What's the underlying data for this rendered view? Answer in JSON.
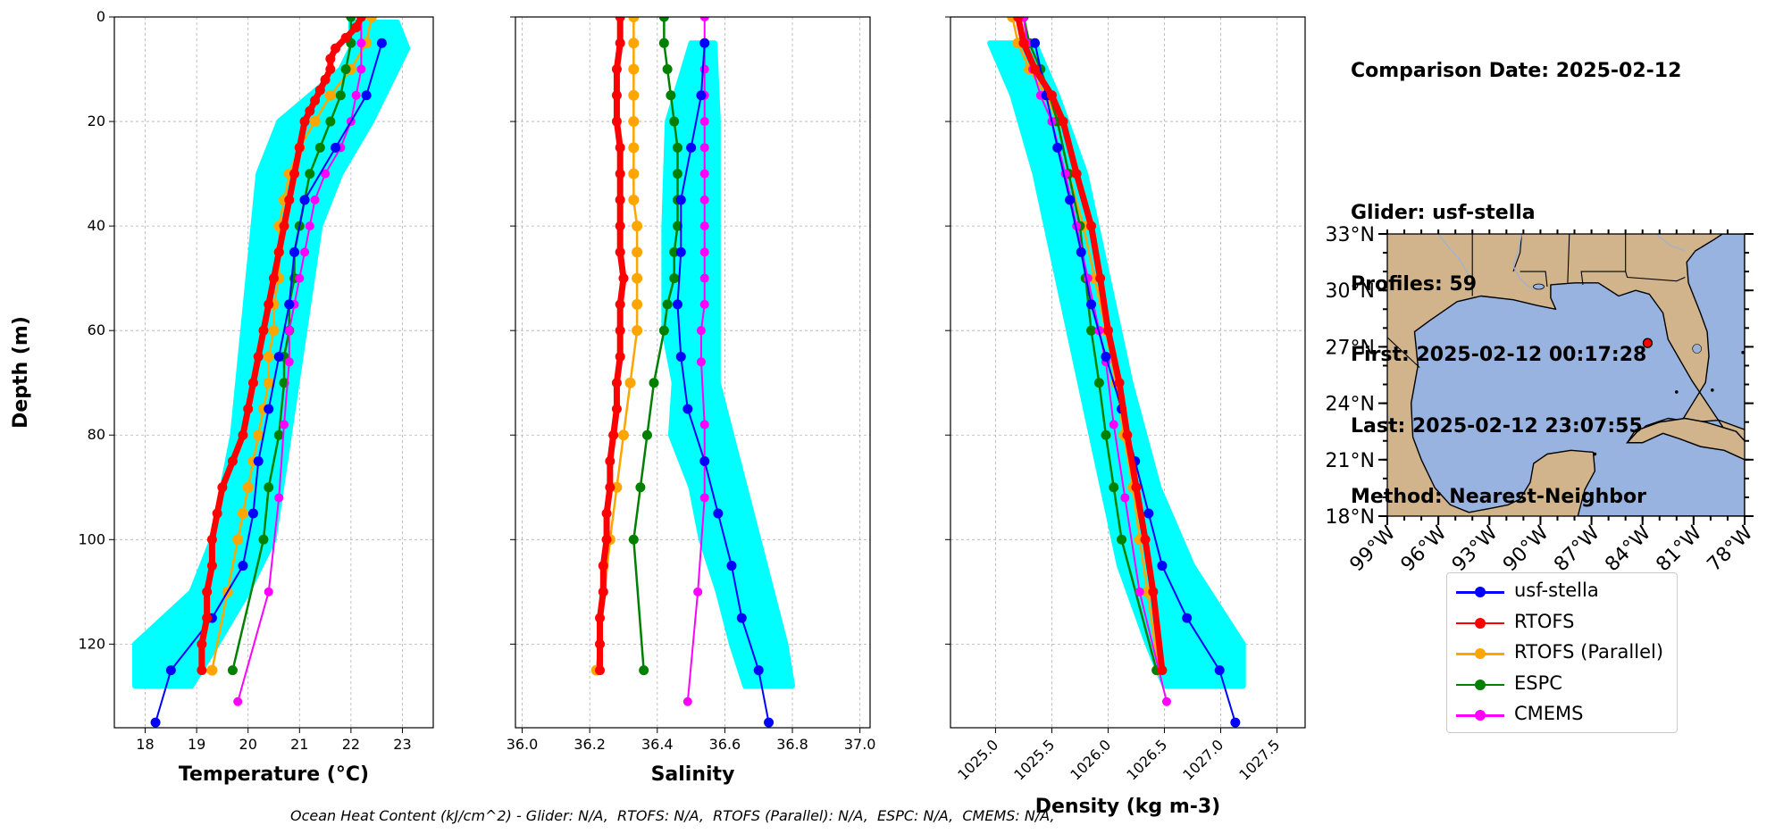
{
  "info": {
    "comparison_date": "Comparison Date: 2025-02-12",
    "glider": "Glider: usf-stella",
    "profiles": "Profiles: 59",
    "first": "First: 2025-02-12 00:17:28",
    "last": "Last: 2025-02-12 23:07:55",
    "method": "Method: Nearest-Neighbor"
  },
  "footer": "Ocean Heat Content (kJ/cm^2) - Glider: N/A,  RTOFS: N/A,  RTOFS (Parallel): N/A,  ESPC: N/A,  CMEMS: N/A,",
  "colors": {
    "glider": "#0000ff",
    "rtofs": "#ff0000",
    "rtofs_parallel": "#ffa500",
    "espc": "#008000",
    "cmems": "#ff00ff",
    "raw": "#00ffff",
    "land": "#d2b48c",
    "water": "#99b3e0"
  },
  "legend": [
    {
      "name": "usf-stella",
      "color": "#0000ff"
    },
    {
      "name": "RTOFS",
      "color": "#ff0000"
    },
    {
      "name": "RTOFS (Parallel)",
      "color": "#ffa500"
    },
    {
      "name": "ESPC",
      "color": "#008000"
    },
    {
      "name": "CMEMS",
      "color": "#ff00ff"
    }
  ],
  "chart_data": [
    {
      "type": "line",
      "xlabel": "Temperature (°C)",
      "ylabel": "Depth (m)",
      "xlim": [
        17.4,
        23.6
      ],
      "ylim": [
        136,
        0
      ],
      "xticks": [
        18,
        19,
        20,
        21,
        22,
        23
      ],
      "yticks": [
        0,
        20,
        40,
        60,
        80,
        100,
        120
      ],
      "grid": true,
      "raw_glider_band": [
        [
          1,
          22.0,
          22.9
        ],
        [
          6,
          22.0,
          23.1
        ],
        [
          10,
          21.8,
          22.9
        ],
        [
          20,
          20.6,
          22.4
        ],
        [
          30,
          20.2,
          21.8
        ],
        [
          40,
          20.1,
          21.4
        ],
        [
          60,
          19.9,
          21.1
        ],
        [
          80,
          19.7,
          20.8
        ],
        [
          100,
          19.3,
          20.5
        ],
        [
          110,
          18.9,
          20.0
        ],
        [
          120,
          17.8,
          19.4
        ],
        [
          128,
          17.8,
          18.9
        ]
      ],
      "series": [
        {
          "name": "usf-stella",
          "depth": [
            5,
            15,
            25,
            35,
            45,
            55,
            65,
            75,
            85,
            95,
            105,
            115,
            125,
            135
          ],
          "values": [
            22.6,
            22.3,
            21.7,
            21.1,
            20.9,
            20.8,
            20.6,
            20.4,
            20.2,
            20.1,
            19.9,
            19.3,
            18.5,
            18.2
          ]
        },
        {
          "name": "RTOFS",
          "depth": [
            0,
            2,
            4,
            6,
            8,
            10,
            12,
            14,
            16,
            18,
            20,
            25,
            30,
            35,
            40,
            45,
            50,
            55,
            60,
            65,
            70,
            75,
            80,
            85,
            90,
            95,
            100,
            105,
            110,
            115,
            120,
            125
          ],
          "values": [
            22.2,
            22.1,
            21.9,
            21.7,
            21.6,
            21.6,
            21.5,
            21.4,
            21.3,
            21.2,
            21.1,
            21.0,
            20.9,
            20.8,
            20.7,
            20.6,
            20.5,
            20.4,
            20.3,
            20.2,
            20.1,
            20.0,
            19.9,
            19.7,
            19.5,
            19.4,
            19.3,
            19.3,
            19.2,
            19.2,
            19.1,
            19.1
          ]
        },
        {
          "name": "RTOFS (Parallel)",
          "depth": [
            0,
            5,
            10,
            15,
            20,
            25,
            30,
            35,
            40,
            45,
            50,
            55,
            60,
            65,
            70,
            75,
            80,
            85,
            90,
            95,
            100,
            110,
            125
          ],
          "values": [
            22.4,
            22.3,
            22.0,
            21.6,
            21.3,
            21.0,
            20.8,
            20.7,
            20.6,
            20.6,
            20.6,
            20.5,
            20.5,
            20.4,
            20.4,
            20.3,
            20.2,
            20.1,
            20.0,
            19.9,
            19.8,
            19.6,
            19.3
          ]
        },
        {
          "name": "ESPC",
          "depth": [
            0,
            5,
            10,
            15,
            20,
            25,
            30,
            35,
            40,
            45,
            50,
            55,
            60,
            65,
            70,
            80,
            90,
            100,
            125
          ],
          "values": [
            22.0,
            22.0,
            21.9,
            21.8,
            21.6,
            21.4,
            21.2,
            21.1,
            21.0,
            20.9,
            20.9,
            20.8,
            20.8,
            20.7,
            20.7,
            20.6,
            20.4,
            20.3,
            19.7
          ]
        },
        {
          "name": "CMEMS",
          "depth": [
            0,
            5,
            10,
            15,
            20,
            25,
            30,
            35,
            40,
            45,
            50,
            55,
            60,
            66,
            78,
            92,
            110,
            131
          ],
          "values": [
            22.2,
            22.2,
            22.2,
            22.1,
            22.0,
            21.8,
            21.5,
            21.3,
            21.2,
            21.1,
            21.0,
            20.9,
            20.8,
            20.8,
            20.7,
            20.6,
            20.4,
            19.8
          ]
        }
      ]
    },
    {
      "type": "line",
      "xlabel": "Salinity",
      "xlim": [
        35.98,
        37.03
      ],
      "ylim": [
        136,
        0
      ],
      "xticks": [
        36.0,
        36.2,
        36.4,
        36.6,
        36.8,
        37.0
      ],
      "yticks": [
        0,
        20,
        40,
        60,
        80,
        100,
        120
      ],
      "grid": true,
      "raw_glider_band": [
        [
          5,
          36.5,
          36.57
        ],
        [
          20,
          36.43,
          36.58
        ],
        [
          40,
          36.42,
          36.58
        ],
        [
          60,
          36.42,
          36.58
        ],
        [
          70,
          36.45,
          36.58
        ],
        [
          80,
          36.44,
          36.62
        ],
        [
          90,
          36.5,
          36.66
        ],
        [
          100,
          36.53,
          36.7
        ],
        [
          110,
          36.58,
          36.74
        ],
        [
          120,
          36.62,
          36.78
        ],
        [
          128,
          36.66,
          36.8
        ]
      ],
      "series": [
        {
          "name": "usf-stella",
          "depth": [
            5,
            15,
            25,
            35,
            45,
            55,
            65,
            75,
            85,
            95,
            105,
            115,
            125,
            135
          ],
          "values": [
            36.54,
            36.53,
            36.5,
            36.47,
            36.47,
            36.46,
            36.47,
            36.49,
            36.54,
            36.58,
            36.62,
            36.65,
            36.7,
            36.73
          ]
        },
        {
          "name": "RTOFS",
          "depth": [
            0,
            5,
            10,
            15,
            20,
            25,
            30,
            35,
            40,
            45,
            50,
            55,
            60,
            65,
            70,
            75,
            80,
            85,
            90,
            95,
            100,
            105,
            110,
            115,
            120,
            125
          ],
          "values": [
            36.29,
            36.29,
            36.28,
            36.28,
            36.28,
            36.29,
            36.29,
            36.29,
            36.29,
            36.29,
            36.3,
            36.29,
            36.29,
            36.29,
            36.28,
            36.28,
            36.27,
            36.26,
            36.26,
            36.25,
            36.25,
            36.24,
            36.24,
            36.23,
            36.23,
            36.23
          ]
        },
        {
          "name": "RTOFS (Parallel)",
          "depth": [
            0,
            5,
            10,
            15,
            20,
            25,
            30,
            35,
            40,
            45,
            50,
            55,
            60,
            70,
            80,
            90,
            100,
            125
          ],
          "values": [
            36.33,
            36.33,
            36.33,
            36.33,
            36.33,
            36.33,
            36.33,
            36.33,
            36.34,
            36.34,
            36.34,
            36.34,
            36.34,
            36.32,
            36.3,
            36.28,
            36.26,
            36.22
          ]
        },
        {
          "name": "ESPC",
          "depth": [
            0,
            5,
            10,
            15,
            20,
            25,
            30,
            35,
            40,
            45,
            50,
            55,
            60,
            70,
            80,
            90,
            100,
            125
          ],
          "values": [
            36.42,
            36.42,
            36.43,
            36.44,
            36.45,
            36.46,
            36.46,
            36.46,
            36.46,
            36.45,
            36.45,
            36.43,
            36.42,
            36.39,
            36.37,
            36.35,
            36.33,
            36.36
          ]
        },
        {
          "name": "CMEMS",
          "depth": [
            0,
            5,
            10,
            15,
            20,
            25,
            30,
            35,
            40,
            45,
            50,
            55,
            60,
            66,
            78,
            92,
            110,
            131
          ],
          "values": [
            36.54,
            36.54,
            36.54,
            36.54,
            36.54,
            36.54,
            36.54,
            36.54,
            36.54,
            36.54,
            36.54,
            36.54,
            36.53,
            36.53,
            36.54,
            36.54,
            36.52,
            36.49
          ]
        }
      ]
    },
    {
      "type": "line",
      "xlabel": "Density (kg m-3)",
      "xlim": [
        1024.6,
        1027.75
      ],
      "ylim": [
        136,
        0
      ],
      "xticks": [
        1025.0,
        1025.5,
        1026.0,
        1026.5,
        1027.0,
        1027.5
      ],
      "yticks": [
        0,
        20,
        40,
        60,
        80,
        100,
        120
      ],
      "grid": true,
      "raw_glider_band": [
        [
          5,
          1024.95,
          1025.35
        ],
        [
          15,
          1025.15,
          1025.55
        ],
        [
          30,
          1025.35,
          1025.8
        ],
        [
          50,
          1025.55,
          1026.0
        ],
        [
          70,
          1025.75,
          1026.2
        ],
        [
          90,
          1025.95,
          1026.45
        ],
        [
          105,
          1026.1,
          1026.75
        ],
        [
          120,
          1026.35,
          1027.2
        ],
        [
          128,
          1026.5,
          1027.2
        ]
      ],
      "series": [
        {
          "name": "usf-stella",
          "depth": [
            5,
            15,
            25,
            35,
            45,
            55,
            65,
            75,
            85,
            95,
            105,
            115,
            125,
            135
          ],
          "values": [
            1025.35,
            1025.45,
            1025.55,
            1025.66,
            1025.76,
            1025.85,
            1025.98,
            1026.12,
            1026.24,
            1026.36,
            1026.48,
            1026.7,
            1026.99,
            1027.13
          ]
        },
        {
          "name": "RTOFS",
          "depth": [
            0,
            5,
            10,
            15,
            20,
            30,
            40,
            50,
            60,
            70,
            80,
            90,
            100,
            110,
            125
          ],
          "values": [
            1025.2,
            1025.25,
            1025.35,
            1025.5,
            1025.6,
            1025.72,
            1025.85,
            1025.93,
            1026.0,
            1026.1,
            1026.17,
            1026.25,
            1026.33,
            1026.4,
            1026.48
          ]
        },
        {
          "name": "RTOFS (Parallel)",
          "depth": [
            0,
            5,
            10,
            15,
            20,
            30,
            40,
            50,
            60,
            70,
            80,
            90,
            100,
            110,
            125
          ],
          "values": [
            1025.15,
            1025.2,
            1025.3,
            1025.45,
            1025.55,
            1025.65,
            1025.78,
            1025.88,
            1025.98,
            1026.07,
            1026.14,
            1026.22,
            1026.28,
            1026.35,
            1026.45
          ]
        },
        {
          "name": "ESPC",
          "depth": [
            0,
            5,
            10,
            15,
            20,
            30,
            40,
            50,
            60,
            70,
            80,
            90,
            100,
            125
          ],
          "values": [
            1025.25,
            1025.3,
            1025.4,
            1025.48,
            1025.55,
            1025.65,
            1025.75,
            1025.8,
            1025.85,
            1025.92,
            1025.98,
            1026.05,
            1026.12,
            1026.43
          ]
        },
        {
          "name": "CMEMS",
          "depth": [
            0,
            5,
            10,
            15,
            20,
            30,
            40,
            50,
            60,
            66,
            78,
            92,
            110,
            131
          ],
          "values": [
            1025.25,
            1025.28,
            1025.33,
            1025.4,
            1025.5,
            1025.62,
            1025.72,
            1025.82,
            1025.92,
            1025.98,
            1026.05,
            1026.15,
            1026.28,
            1026.52
          ]
        }
      ]
    },
    {
      "type": "map",
      "lon_labels": [
        "99°W",
        "96°W",
        "93°W",
        "90°W",
        "87°W",
        "84°W",
        "81°W",
        "78°W"
      ],
      "lat_labels": [
        "33°N",
        "30°N",
        "27°N",
        "24°N",
        "21°N",
        "18°N"
      ],
      "lon_range": [
        -99,
        -78
      ],
      "lat_range": [
        18,
        33
      ],
      "glider_position": {
        "lon": -83.7,
        "lat": 27.2
      }
    }
  ]
}
